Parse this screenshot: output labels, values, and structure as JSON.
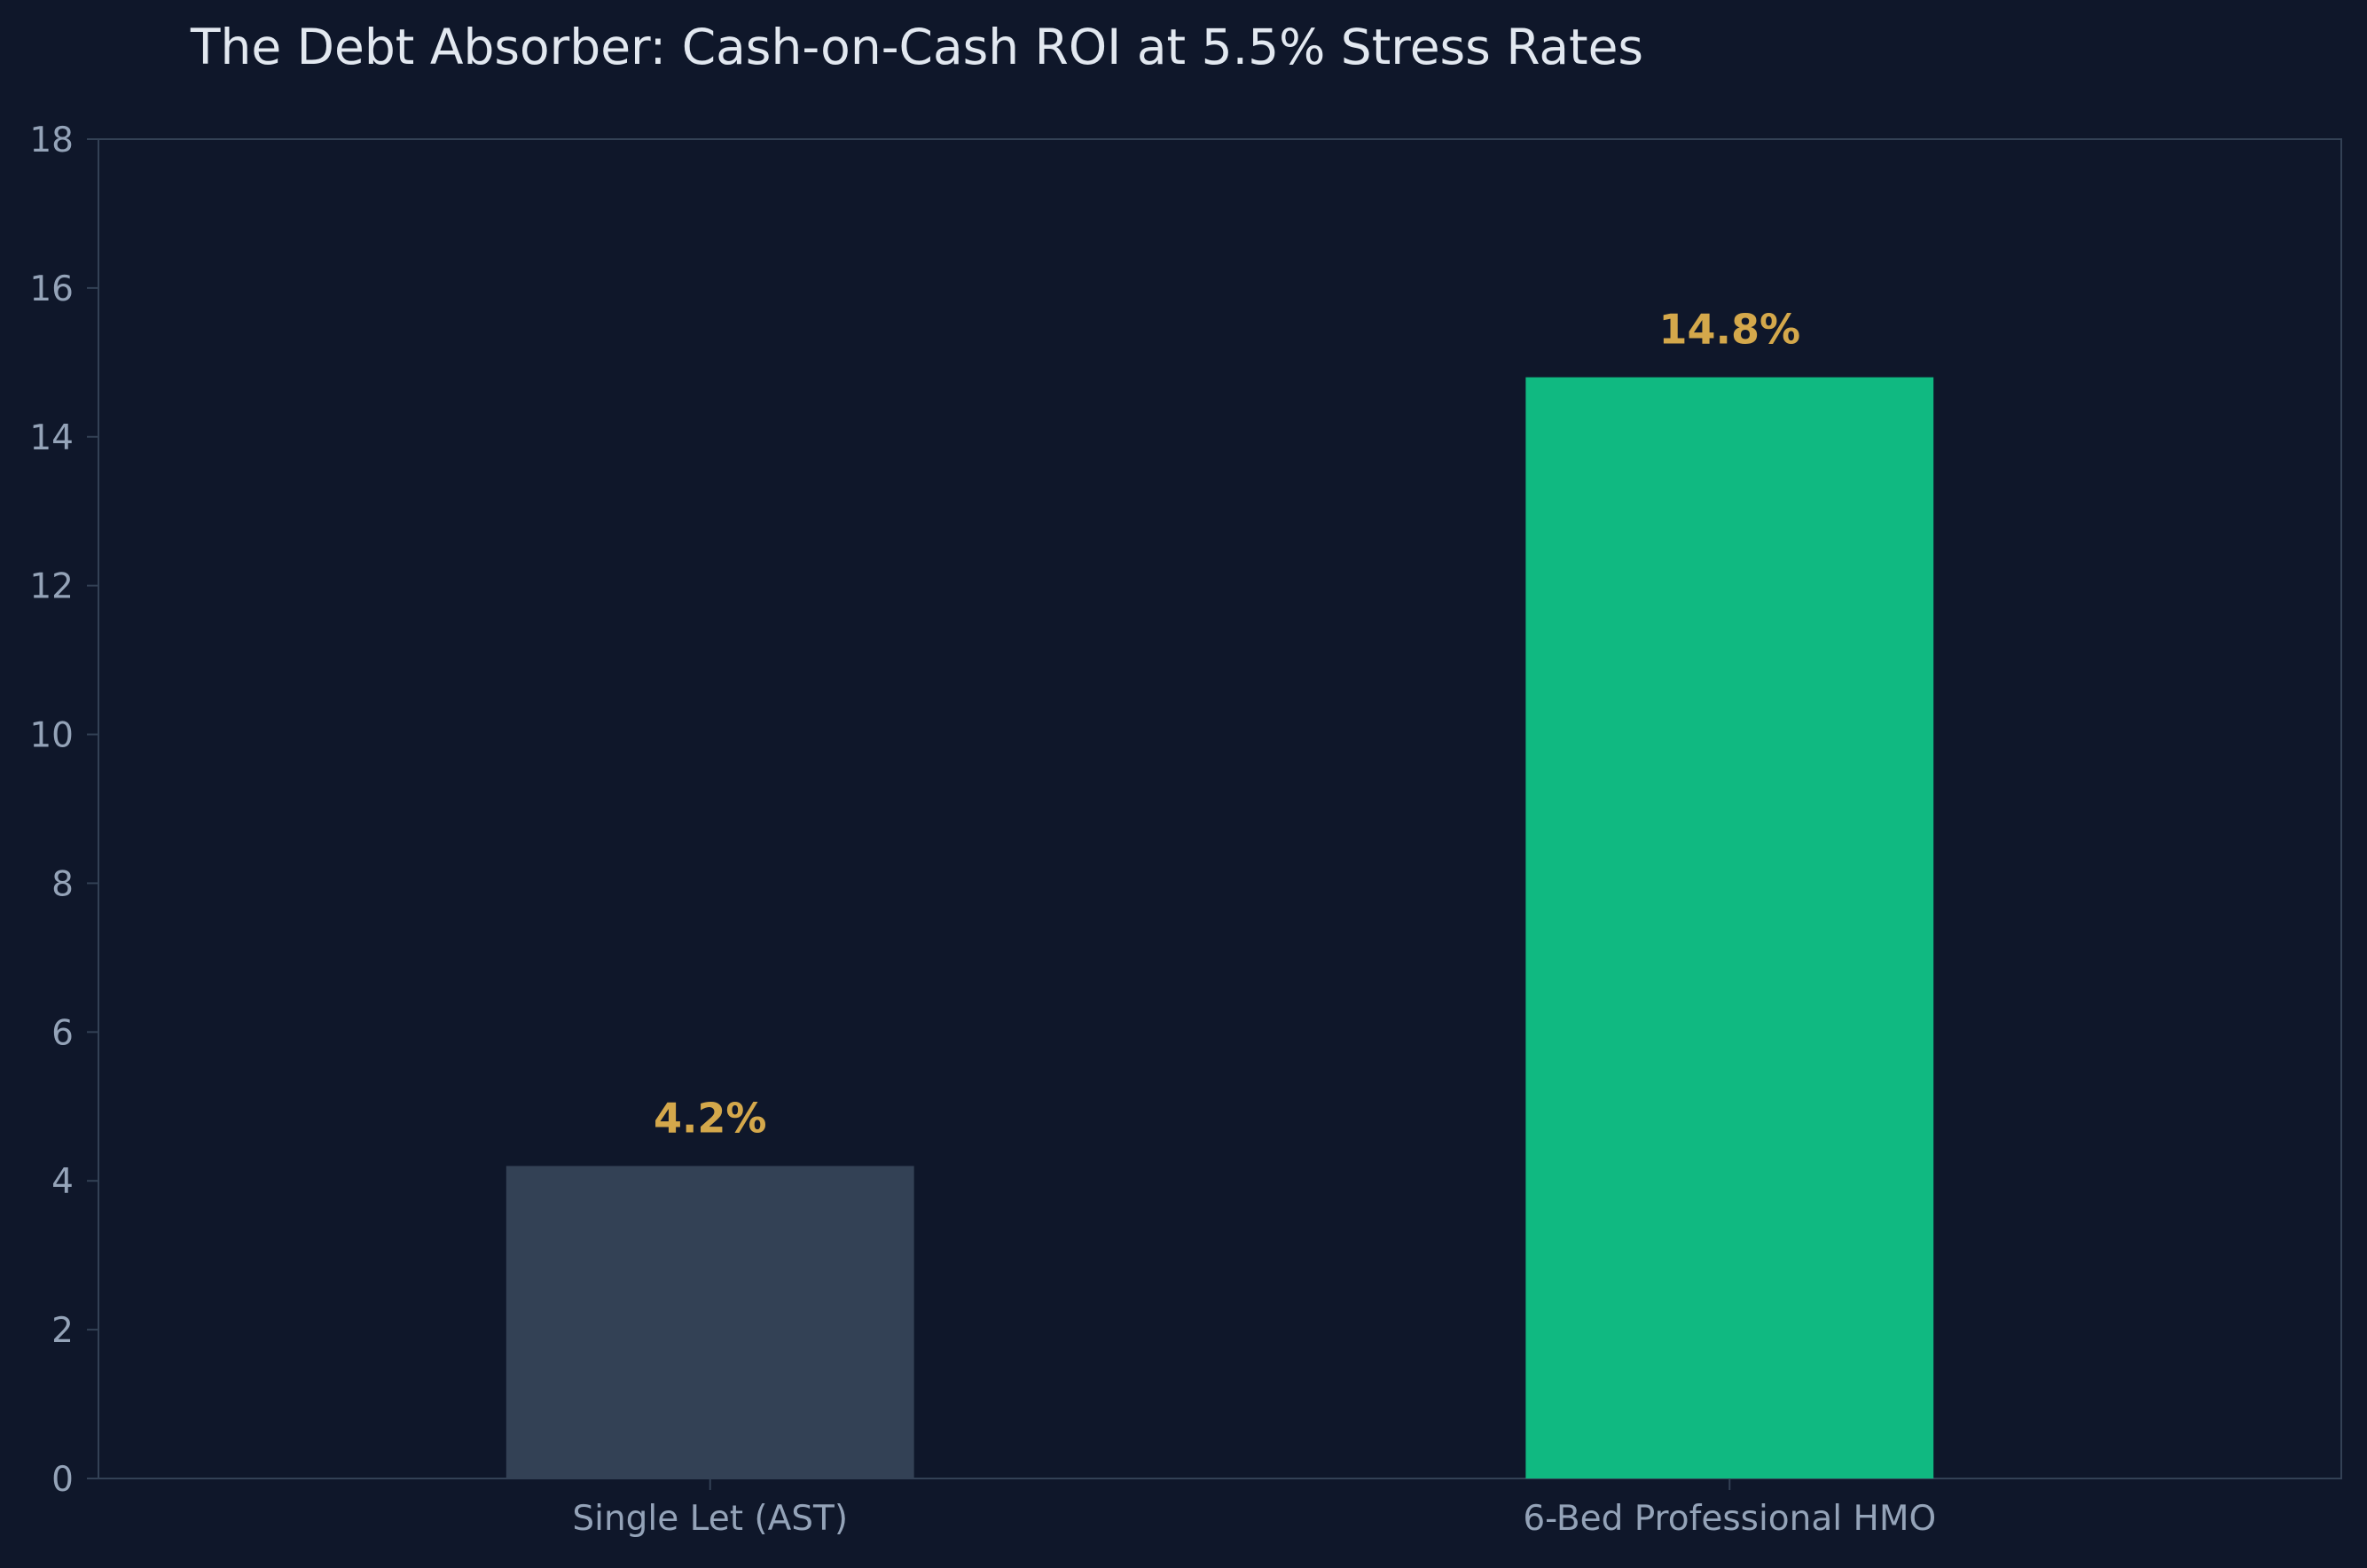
{
  "chart_data": {
    "type": "bar",
    "title": "The Debt Absorber: Cash-on-Cash ROI at 5.5% Stress Rates",
    "xlabel": "",
    "ylabel": "",
    "categories": [
      "Single Let (AST)",
      "6-Bed Professional HMO"
    ],
    "values": [
      4.2,
      14.8
    ],
    "data_labels": [
      "4.2%",
      "14.8%"
    ],
    "bar_colors": [
      "#334155",
      "#10b981"
    ],
    "ylim": [
      0,
      18
    ],
    "yticks": [
      0,
      2,
      4,
      6,
      8,
      10,
      12,
      14,
      16,
      18
    ],
    "grid": false,
    "legend": "none"
  },
  "colors": {
    "background": "#0f172a",
    "axis": "#334155",
    "tick_text": "#94a3b8",
    "title_text": "#e2e8f0",
    "data_label": "#d4a84b"
  }
}
